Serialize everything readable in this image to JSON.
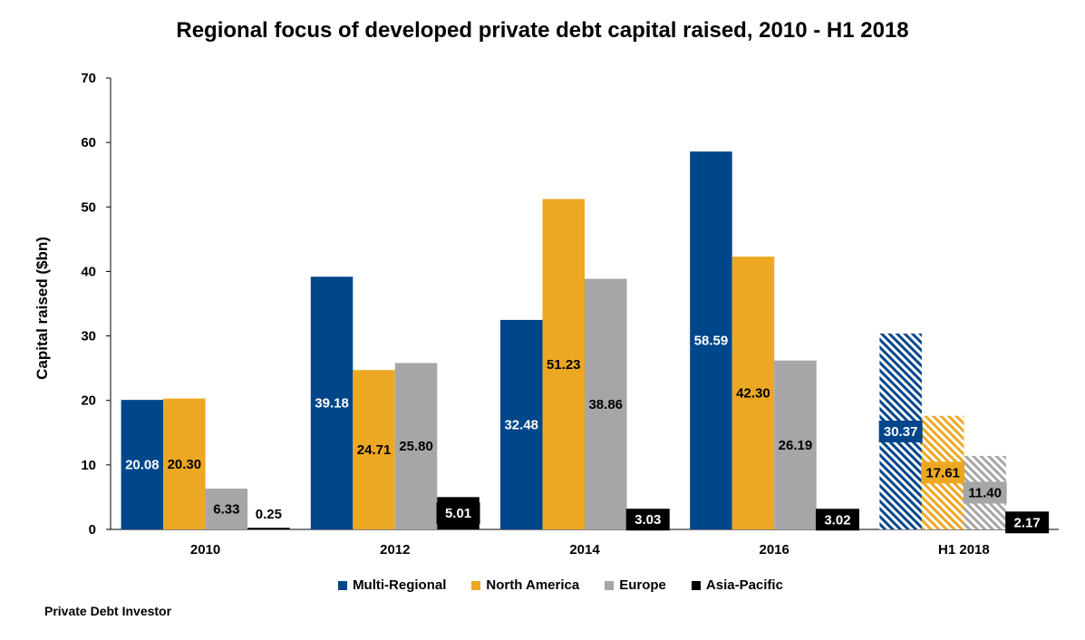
{
  "chart_data": {
    "type": "bar",
    "title": "Regional focus of developed private debt capital raised, 2010 - H1 2018",
    "ylabel": "Capital raised ($bn)",
    "xlabel": "",
    "ylim": [
      0,
      70
    ],
    "yticks": [
      "0",
      "10",
      "20",
      "30",
      "40",
      "50",
      "60",
      "70"
    ],
    "categories": [
      "2010",
      "2012",
      "2014",
      "2016",
      "H1 2018"
    ],
    "series": [
      {
        "name": "Multi-Regional",
        "color": "#00468B",
        "values": [
          20.08,
          39.18,
          32.48,
          58.59,
          30.37
        ],
        "labels": [
          "20.08",
          "39.18",
          "32.48",
          "58.59",
          "30.37"
        ]
      },
      {
        "name": "North America",
        "color": "#EDA823",
        "values": [
          20.3,
          24.71,
          51.23,
          42.3,
          17.61
        ],
        "labels": [
          "20.30",
          "24.71",
          "51.23",
          "42.30",
          "17.61"
        ]
      },
      {
        "name": "Europe",
        "color": "#A6A6A6",
        "values": [
          6.33,
          25.8,
          38.86,
          26.19,
          11.4
        ],
        "labels": [
          "6.33",
          "25.80",
          "38.86",
          "26.19",
          "11.40"
        ]
      },
      {
        "name": "Asia-Pacific",
        "color": "#000000",
        "values": [
          0.25,
          5.01,
          3.03,
          3.02,
          2.17
        ],
        "labels": [
          "0.25",
          "5.01",
          "3.03",
          "3.02",
          "2.17"
        ]
      }
    ],
    "hatched_categories": [
      "H1 2018"
    ],
    "legend_position": "bottom",
    "grid": false
  },
  "source": "Private Debt Investor"
}
